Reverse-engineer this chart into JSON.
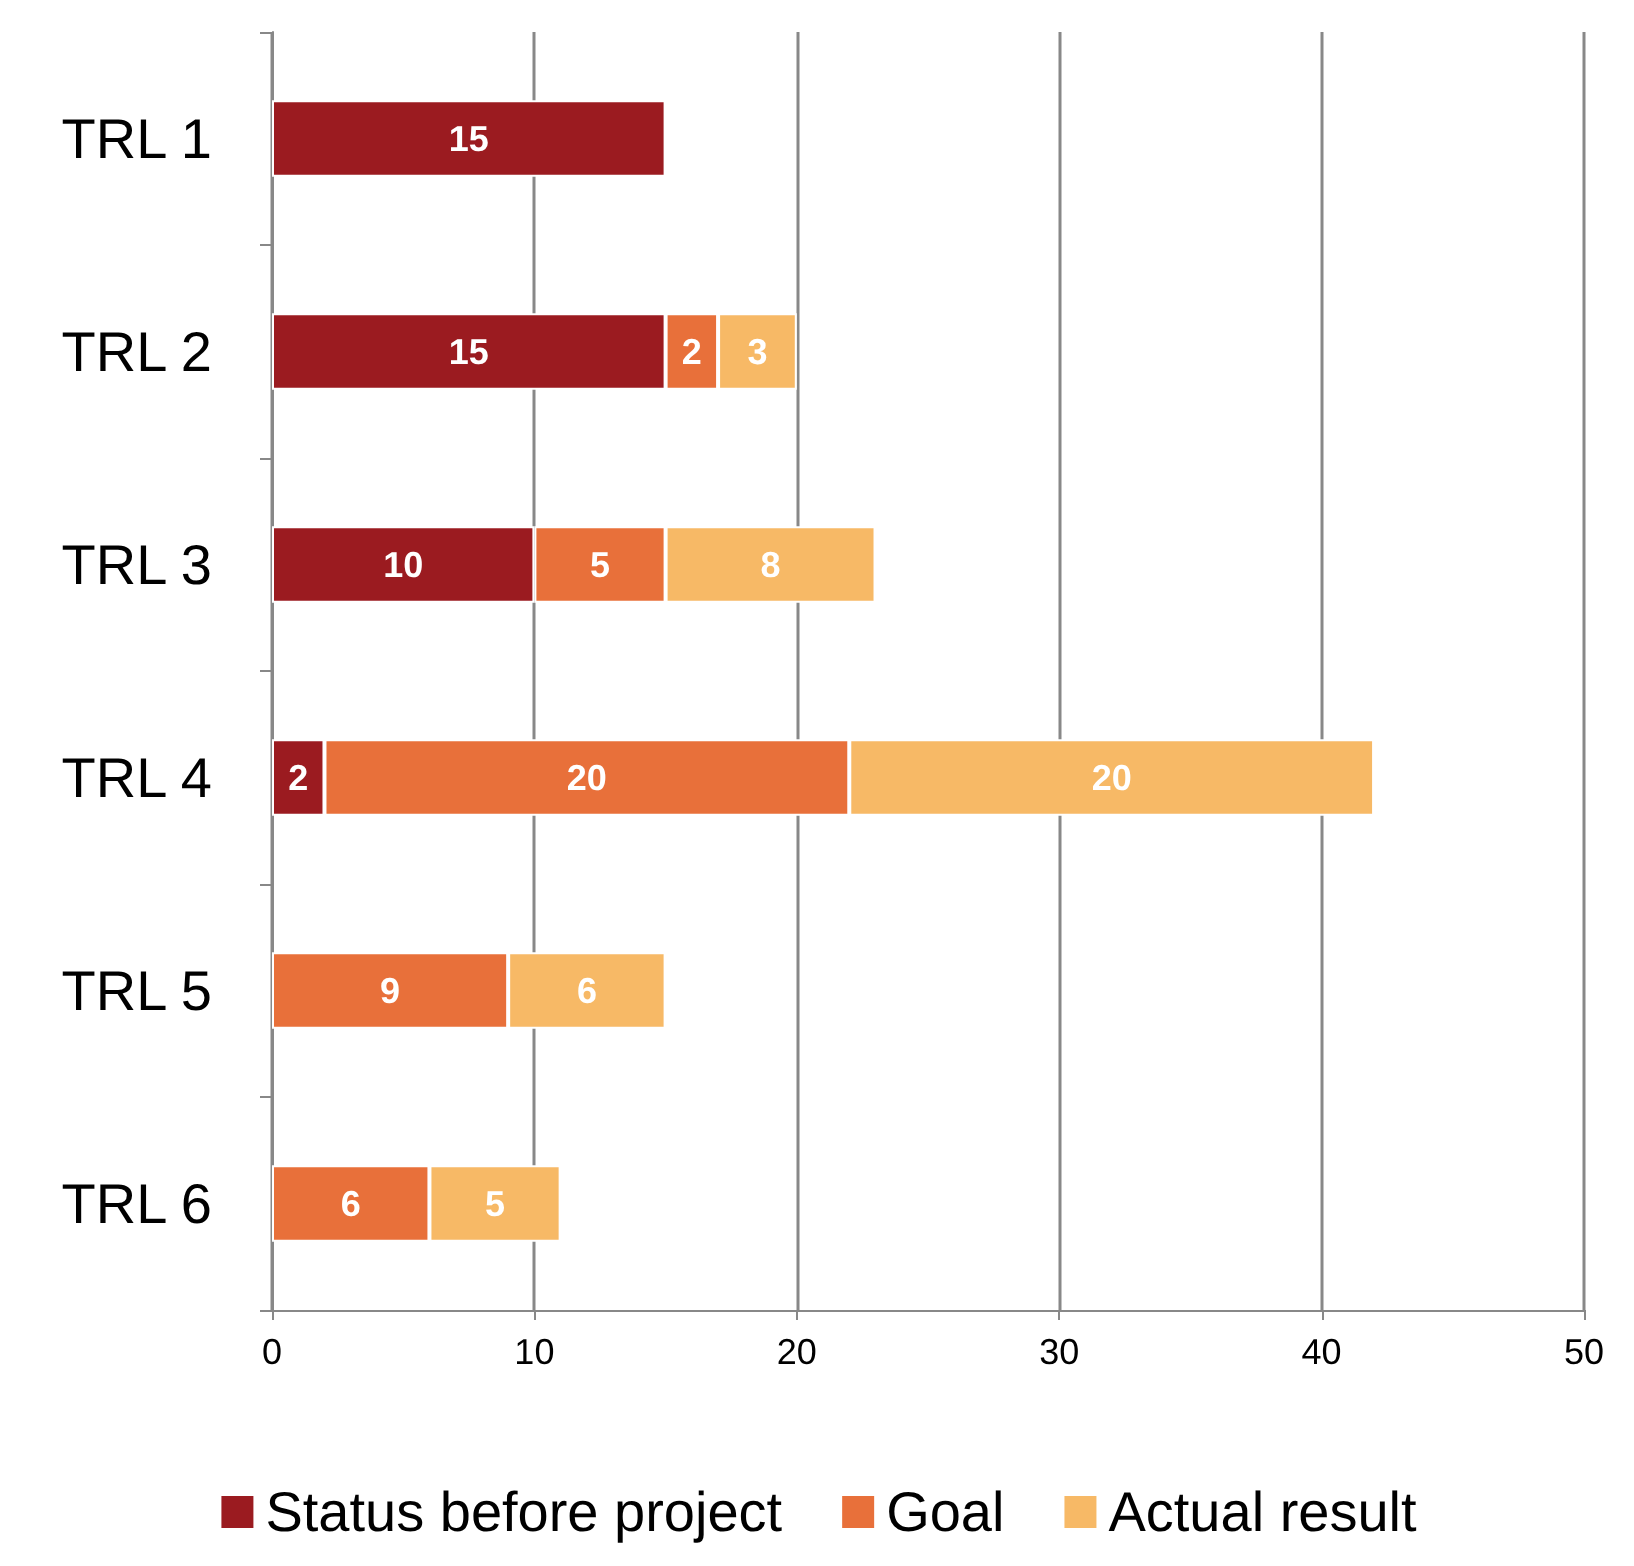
{
  "chart_data": {
    "type": "bar",
    "orientation": "horizontal",
    "stacked": true,
    "categories": [
      "TRL 1",
      "TRL 2",
      "TRL 3",
      "TRL 4",
      "TRL 5",
      "TRL 6"
    ],
    "series": [
      {
        "name": "Status before project",
        "color": "#9b1b20",
        "values": [
          15,
          15,
          10,
          2,
          null,
          null
        ]
      },
      {
        "name": "Goal",
        "color": "#e8703a",
        "values": [
          null,
          2,
          5,
          20,
          9,
          6
        ]
      },
      {
        "name": "Actual result",
        "color": "#f7b966",
        "values": [
          null,
          3,
          8,
          20,
          6,
          5
        ]
      }
    ],
    "xlim": [
      0,
      50
    ],
    "xticks": [
      0,
      10,
      20,
      30,
      40,
      50
    ],
    "grid": "x",
    "legend": "bottom",
    "data_labels": true
  }
}
